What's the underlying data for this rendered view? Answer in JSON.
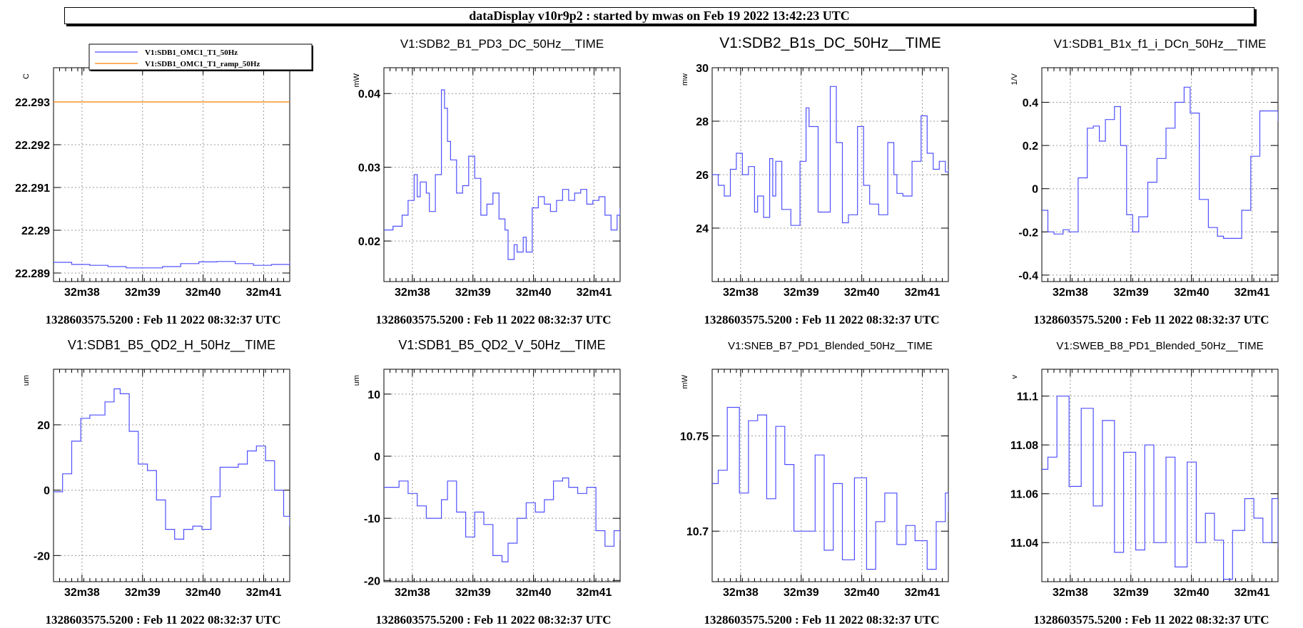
{
  "header": {
    "title": "dataDisplay v10r9p2 : started by mwas on Feb 19 2022 13:42:23 UTC"
  },
  "colors": {
    "trace": "#5050ff",
    "ramp": "#ff8000",
    "grid": "#9a9a9a",
    "axis": "#000000"
  },
  "chart_data": [
    {
      "type": "line",
      "title": "",
      "ylabel": "C",
      "ylim": [
        22.2888,
        22.2938
      ],
      "yticks": [
        {
          "v": 22.289,
          "label": "22.289"
        },
        {
          "v": 22.29,
          "label": "22.29"
        },
        {
          "v": 22.291,
          "label": "22.291"
        },
        {
          "v": 22.292,
          "label": "22.292"
        },
        {
          "v": 22.293,
          "label": "22.293"
        }
      ],
      "xlim": [
        0,
        3.9
      ],
      "xticks": [
        {
          "v": 0.47,
          "label": "32m38"
        },
        {
          "v": 1.47,
          "label": "32m39"
        },
        {
          "v": 2.47,
          "label": "32m40"
        },
        {
          "v": 3.47,
          "label": "32m41"
        }
      ],
      "legend": {
        "placement": "top",
        "entries": [
          "V1:SDB1_OMC1_T1_50Hz",
          "V1:SDB1_OMC1_T1_ramp_50Hz"
        ]
      },
      "series": [
        {
          "name": "V1:SDB1_OMC1_T1_50Hz",
          "color": "#5050ff",
          "x": [
            0,
            0.3,
            0.6,
            0.9,
            1.2,
            1.5,
            1.8,
            2.1,
            2.4,
            2.7,
            3.0,
            3.3,
            3.6,
            3.9
          ],
          "y": [
            22.28925,
            22.2892,
            22.28918,
            22.28915,
            22.28912,
            22.28912,
            22.28915,
            22.28922,
            22.28926,
            22.28927,
            22.28922,
            22.28918,
            22.2892,
            22.28926
          ]
        },
        {
          "name": "V1:SDB1_OMC1_T1_ramp_50Hz",
          "color": "#ff8000",
          "x": [
            0,
            3.9
          ],
          "y": [
            22.293,
            22.293
          ]
        }
      ],
      "footer": "1328603575.5200 : Feb 11 2022 08:32:37 UTC"
    },
    {
      "type": "line",
      "title": "V1:SDB2_B1_PD3_DC_50Hz__TIME",
      "ylabel": "mW",
      "ylim": [
        0.0145,
        0.0435
      ],
      "yticks": [
        {
          "v": 0.02,
          "label": "0.02"
        },
        {
          "v": 0.03,
          "label": "0.03"
        },
        {
          "v": 0.04,
          "label": "0.04"
        }
      ],
      "xlim": [
        0,
        3.9
      ],
      "xticks": [
        {
          "v": 0.47,
          "label": "32m38"
        },
        {
          "v": 1.47,
          "label": "32m39"
        },
        {
          "v": 2.47,
          "label": "32m40"
        },
        {
          "v": 3.47,
          "label": "32m41"
        }
      ],
      "series": [
        {
          "color": "#5050ff",
          "x": [
            0,
            0.15,
            0.3,
            0.4,
            0.5,
            0.55,
            0.6,
            0.7,
            0.75,
            0.85,
            0.95,
            1.0,
            1.05,
            1.1,
            1.2,
            1.3,
            1.4,
            1.5,
            1.6,
            1.7,
            1.8,
            1.9,
            2.0,
            2.05,
            2.15,
            2.2,
            2.3,
            2.35,
            2.45,
            2.55,
            2.65,
            2.75,
            2.85,
            2.95,
            3.05,
            3.15,
            3.25,
            3.35,
            3.45,
            3.55,
            3.65,
            3.75,
            3.85,
            3.9
          ],
          "y": [
            0.0215,
            0.022,
            0.0235,
            0.0255,
            0.029,
            0.026,
            0.028,
            0.0265,
            0.024,
            0.029,
            0.0405,
            0.038,
            0.0335,
            0.031,
            0.0265,
            0.0275,
            0.0315,
            0.0285,
            0.0235,
            0.025,
            0.0265,
            0.023,
            0.0215,
            0.0175,
            0.0195,
            0.0185,
            0.0205,
            0.0185,
            0.0245,
            0.026,
            0.025,
            0.024,
            0.0255,
            0.027,
            0.0255,
            0.0265,
            0.027,
            0.025,
            0.0255,
            0.026,
            0.0235,
            0.0215,
            0.0235,
            0.0245
          ]
        }
      ],
      "footer": "1328603575.5200 : Feb 11 2022 08:32:37 UTC"
    },
    {
      "type": "line",
      "title": "V1:SDB2_B1s_DC_50Hz__TIME",
      "ylabel": "mw",
      "ylim": [
        22,
        30
      ],
      "yticks": [
        {
          "v": 24,
          "label": "24"
        },
        {
          "v": 26,
          "label": "26"
        },
        {
          "v": 28,
          "label": "28"
        },
        {
          "v": 30,
          "label": "30"
        }
      ],
      "xlim": [
        0,
        3.9
      ],
      "xticks": [
        {
          "v": 0.47,
          "label": "32m38"
        },
        {
          "v": 1.47,
          "label": "32m39"
        },
        {
          "v": 2.47,
          "label": "32m40"
        },
        {
          "v": 3.47,
          "label": "32m41"
        }
      ],
      "series": [
        {
          "color": "#5050ff",
          "x": [
            0,
            0.1,
            0.2,
            0.3,
            0.4,
            0.5,
            0.6,
            0.7,
            0.75,
            0.85,
            0.95,
            1.0,
            1.05,
            1.15,
            1.3,
            1.45,
            1.55,
            1.6,
            1.75,
            1.95,
            2.05,
            2.15,
            2.25,
            2.4,
            2.5,
            2.6,
            2.75,
            2.9,
            3.0,
            3.05,
            3.15,
            3.3,
            3.45,
            3.55,
            3.65,
            3.75,
            3.85,
            3.9
          ],
          "y": [
            26,
            25.6,
            25.2,
            26.2,
            26.8,
            26,
            26.3,
            24.6,
            25.2,
            24.4,
            26.6,
            25.2,
            26.5,
            24.7,
            24.1,
            26.5,
            28.5,
            27.8,
            24.6,
            29.3,
            27.2,
            24.2,
            24.5,
            27.8,
            25.6,
            24.9,
            24.5,
            27.2,
            26,
            25.3,
            25.2,
            26.5,
            28.2,
            26.8,
            26.2,
            26.5,
            26.1,
            26.2
          ]
        }
      ],
      "footer": "1328603575.5200 : Feb 11 2022 08:32:37 UTC"
    },
    {
      "type": "line",
      "title": "V1:SDB1_B1x_f1_i_DCn_50Hz__TIME",
      "ylabel": "1/V",
      "ylim": [
        -0.43,
        0.56
      ],
      "yticks": [
        {
          "v": -0.4,
          "label": "-0.4"
        },
        {
          "v": -0.2,
          "label": "-0.2"
        },
        {
          "v": 0,
          "label": "0"
        },
        {
          "v": 0.2,
          "label": "0.2"
        },
        {
          "v": 0.4,
          "label": "0.4"
        }
      ],
      "xlim": [
        0,
        3.9
      ],
      "xticks": [
        {
          "v": 0.47,
          "label": "32m38"
        },
        {
          "v": 1.47,
          "label": "32m39"
        },
        {
          "v": 2.47,
          "label": "32m40"
        },
        {
          "v": 3.47,
          "label": "32m41"
        }
      ],
      "series": [
        {
          "color": "#5050ff",
          "x": [
            0,
            0.1,
            0.2,
            0.35,
            0.45,
            0.6,
            0.75,
            0.85,
            0.95,
            1.05,
            1.2,
            1.3,
            1.4,
            1.5,
            1.6,
            1.75,
            1.9,
            2.05,
            2.2,
            2.35,
            2.45,
            2.6,
            2.75,
            2.9,
            3.0,
            3.15,
            3.3,
            3.45,
            3.6,
            3.75,
            3.9
          ],
          "y": [
            -0.1,
            -0.2,
            -0.21,
            -0.19,
            -0.2,
            0.05,
            0.28,
            0.29,
            0.22,
            0.32,
            0.38,
            0.2,
            -0.12,
            -0.2,
            -0.13,
            0.03,
            0.14,
            0.28,
            0.4,
            0.47,
            0.35,
            -0.05,
            -0.18,
            -0.22,
            -0.23,
            -0.23,
            -0.1,
            0.15,
            0.36,
            0.36,
            0.31
          ]
        }
      ],
      "footer": "1328603575.5200 : Feb 11 2022 08:32:37 UTC"
    },
    {
      "type": "line",
      "title": "V1:SDB1_B5_QD2_H_50Hz__TIME",
      "ylabel": "um",
      "ylim": [
        -28,
        37
      ],
      "yticks": [
        {
          "v": -20,
          "label": "-20"
        },
        {
          "v": 0,
          "label": "0"
        },
        {
          "v": 20,
          "label": "20"
        }
      ],
      "xlim": [
        0,
        3.9
      ],
      "xticks": [
        {
          "v": 0.47,
          "label": "32m38"
        },
        {
          "v": 1.47,
          "label": "32m39"
        },
        {
          "v": 2.47,
          "label": "32m40"
        },
        {
          "v": 3.47,
          "label": "32m41"
        }
      ],
      "series": [
        {
          "color": "#5050ff",
          "x": [
            0,
            0.15,
            0.3,
            0.45,
            0.6,
            0.7,
            0.85,
            1.0,
            1.1,
            1.25,
            1.4,
            1.55,
            1.7,
            1.85,
            2.0,
            2.15,
            2.3,
            2.45,
            2.6,
            2.75,
            2.9,
            3.05,
            3.2,
            3.35,
            3.5,
            3.65,
            3.8,
            3.9
          ],
          "y": [
            -0.5,
            5,
            15,
            22,
            23,
            23,
            27,
            31,
            29.5,
            18,
            8,
            6,
            -3,
            -12,
            -15,
            -12,
            -11,
            -12,
            -2,
            7,
            7,
            8,
            12,
            13.5,
            9,
            0,
            -8,
            -11
          ]
        }
      ],
      "footer": "1328603575.5200 : Feb 11 2022 08:32:37 UTC"
    },
    {
      "type": "line",
      "title": "V1:SDB1_B5_QD2_V_50Hz__TIME",
      "ylabel": "um",
      "ylim": [
        -20.2,
        14
      ],
      "yticks": [
        {
          "v": -20,
          "label": "-20"
        },
        {
          "v": -10,
          "label": "-10"
        },
        {
          "v": 0,
          "label": "0"
        },
        {
          "v": 10,
          "label": "10"
        }
      ],
      "xlim": [
        0,
        3.9
      ],
      "xticks": [
        {
          "v": 0.47,
          "label": "32m38"
        },
        {
          "v": 1.47,
          "label": "32m39"
        },
        {
          "v": 2.47,
          "label": "32m40"
        },
        {
          "v": 3.47,
          "label": "32m41"
        }
      ],
      "series": [
        {
          "color": "#5050ff",
          "x": [
            0,
            0.1,
            0.25,
            0.4,
            0.55,
            0.7,
            0.85,
            0.95,
            1.05,
            1.2,
            1.35,
            1.5,
            1.65,
            1.8,
            1.95,
            2.05,
            2.2,
            2.35,
            2.5,
            2.65,
            2.8,
            2.95,
            3.05,
            3.2,
            3.35,
            3.5,
            3.65,
            3.8,
            3.9
          ],
          "y": [
            -5,
            -5,
            -4,
            -6,
            -8,
            -10,
            -10,
            -7,
            -4,
            -9,
            -13,
            -9,
            -11,
            -16,
            -17,
            -14,
            -10,
            -7.5,
            -9,
            -7,
            -4,
            -3.5,
            -5,
            -6,
            -5,
            -12,
            -14.5,
            -12,
            -13.5
          ]
        }
      ],
      "footer": "1328603575.5200 : Feb 11 2022 08:32:37 UTC"
    },
    {
      "type": "line",
      "title": "V1:SNEB_B7_PD1_Blended_50Hz__TIME",
      "ylabel": "mW",
      "ylim": [
        10.6735,
        10.785
      ],
      "yticks": [
        {
          "v": 10.7,
          "label": "10.7"
        },
        {
          "v": 10.75,
          "label": "10.75"
        }
      ],
      "xlim": [
        0,
        3.9
      ],
      "xticks": [
        {
          "v": 0.47,
          "label": "32m38"
        },
        {
          "v": 1.47,
          "label": "32m39"
        },
        {
          "v": 2.47,
          "label": "32m40"
        },
        {
          "v": 3.47,
          "label": "32m41"
        }
      ],
      "series": [
        {
          "color": "#5050ff",
          "x": [
            0,
            0.1,
            0.25,
            0.45,
            0.6,
            0.75,
            0.9,
            1.05,
            1.2,
            1.35,
            1.5,
            1.7,
            1.85,
            2.0,
            2.15,
            2.35,
            2.55,
            2.7,
            2.85,
            3.05,
            3.2,
            3.35,
            3.55,
            3.7,
            3.85,
            3.9
          ],
          "y": [
            10.725,
            10.732,
            10.765,
            10.72,
            10.758,
            10.761,
            10.717,
            10.755,
            10.735,
            10.7,
            10.7,
            10.74,
            10.69,
            10.725,
            10.685,
            10.728,
            10.68,
            10.705,
            10.72,
            10.693,
            10.703,
            10.695,
            10.68,
            10.705,
            10.72,
            10.71
          ]
        }
      ],
      "footer": "1328603575.5200 : Feb 11 2022 08:32:37 UTC"
    },
    {
      "type": "line",
      "title": "V1:SWEB_B8_PD1_Blended_50Hz__TIME",
      "ylabel": "v",
      "ylim": [
        11.024,
        11.111
      ],
      "yticks": [
        {
          "v": 11.04,
          "label": "11.04"
        },
        {
          "v": 11.06,
          "label": "11.06"
        },
        {
          "v": 11.08,
          "label": "11.08"
        },
        {
          "v": 11.1,
          "label": "11.1"
        }
      ],
      "xlim": [
        0,
        3.9
      ],
      "xticks": [
        {
          "v": 0.47,
          "label": "32m38"
        },
        {
          "v": 1.47,
          "label": "32m39"
        },
        {
          "v": 2.47,
          "label": "32m40"
        },
        {
          "v": 3.47,
          "label": "32m41"
        }
      ],
      "series": [
        {
          "color": "#5050ff",
          "x": [
            0,
            0.1,
            0.25,
            0.45,
            0.65,
            0.85,
            1.0,
            1.2,
            1.35,
            1.55,
            1.7,
            1.85,
            2.05,
            2.2,
            2.4,
            2.55,
            2.7,
            2.85,
            3.0,
            3.15,
            3.35,
            3.5,
            3.65,
            3.8,
            3.9
          ],
          "y": [
            11.07,
            11.075,
            11.1,
            11.063,
            11.095,
            11.055,
            11.09,
            11.036,
            11.077,
            11.037,
            11.08,
            11.04,
            11.075,
            11.03,
            11.073,
            11.04,
            11.052,
            11.041,
            11.025,
            11.045,
            11.058,
            11.05,
            11.04,
            11.058,
            11.038
          ]
        }
      ],
      "footer": "1328603575.5200 : Feb 11 2022 08:32:37 UTC"
    }
  ]
}
